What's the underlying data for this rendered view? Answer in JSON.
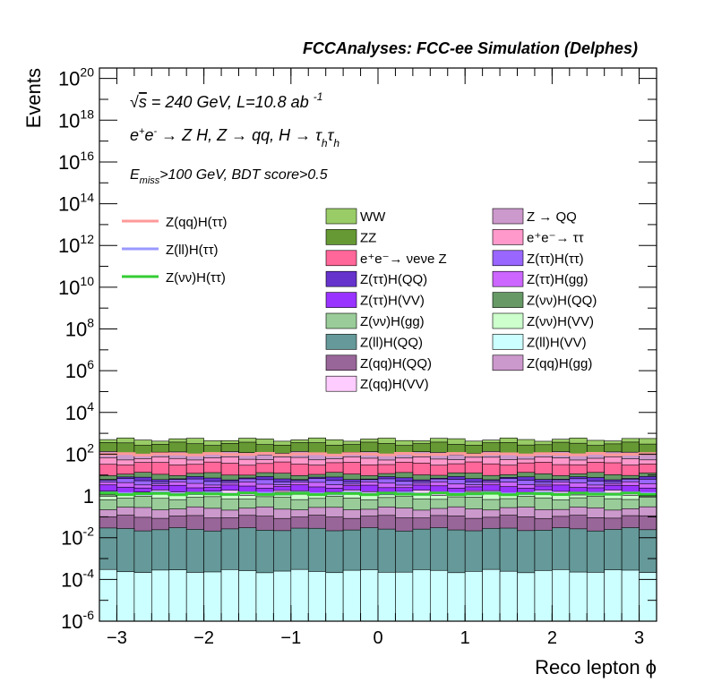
{
  "chart_data": {
    "type": "area",
    "title": "FCCAnalyses: FCC-ee Simulation (Delphes)",
    "annotations": [
      "√s = 240 GeV, L=10.8 ab⁻¹",
      "e⁺e⁻ → Z H, Z → qq, H → τhτh",
      "Emiss>100 GeV, BDT score>0.5"
    ],
    "xlabel": "Reco lepton ϕ",
    "ylabel": "Events",
    "xlim": [
      -3.2,
      3.2
    ],
    "ylim_log10": [
      -6,
      20.5
    ],
    "yscale": "log",
    "x_ticks": [
      "−3",
      "−2",
      "−1",
      "0",
      "1",
      "2",
      "3"
    ],
    "y_ticks": [
      "10^-6",
      "10^-4",
      "10^-2",
      "1",
      "10^2",
      "10^4",
      "10^6",
      "10^8",
      "10^10",
      "10^12",
      "10^14",
      "10^16",
      "10^18",
      "10^20"
    ],
    "n_bins": 32,
    "stack_levels_log10_bottom_to_top": [
      {
        "name": "Z(ll)H(VV)",
        "level": -3.6,
        "color": "#ccffff"
      },
      {
        "name": "Z(ll)H(QQ)",
        "level": -1.6,
        "color": "#669999"
      },
      {
        "name": "Z(qq)H(QQ)",
        "level": -1.0,
        "color": "#996699"
      },
      {
        "name": "Z(qq)H(gg)",
        "level": -0.6,
        "color": "#cc99cc"
      },
      {
        "name": "Z(νν)H(gg)",
        "level": -0.1,
        "color": "#99cc99"
      },
      {
        "name": "Z(νν)H(VV)",
        "level": 0.1,
        "color": "#ccffcc"
      },
      {
        "name": "Z(qq)H(VV)",
        "level": 0.2,
        "color": "#ffccff"
      },
      {
        "name": "Z(ττ)H(VV)",
        "level": 0.45,
        "color": "#9933ff"
      },
      {
        "name": "Z(ττ)H(gg)",
        "level": 0.6,
        "color": "#cc66ff"
      },
      {
        "name": "Z(ττ)H(ττ)",
        "level": 0.75,
        "color": "#9966ff"
      },
      {
        "name": "Z(ττ)H(QQ)",
        "level": 0.85,
        "color": "#6633cc"
      },
      {
        "name": "Z(νν)H(QQ)",
        "level": 1.05,
        "color": "#669966"
      },
      {
        "name": "e⁺e⁻→ νeνe Z",
        "level": 1.55,
        "color": "#ff6699"
      },
      {
        "name": "e⁺e⁻→ ττ",
        "level": 1.8,
        "color": "#ff99cc"
      },
      {
        "name": "Z → QQ",
        "level": 2.05,
        "color": "#cc99cc"
      },
      {
        "name": "ZZ",
        "level": 2.5,
        "color": "#669933"
      },
      {
        "name": "WW",
        "level": 2.7,
        "color": "#99cc66"
      }
    ],
    "signal_lines_log10": [
      {
        "name": "Z(qq)H(ττ)",
        "level": 2.0,
        "color": "#ff9999"
      },
      {
        "name": "Z(ll)H(ττ)",
        "level": 0.12,
        "color": "#9999ff"
      },
      {
        "name": "Z(νν)H(ττ)",
        "level": 0.1,
        "color": "#33cc33"
      }
    ],
    "legend_left": [
      "Z(qq)H(ττ)",
      "Z(ll)H(ττ)",
      "Z(νν)H(ττ)"
    ],
    "legend_col2": [
      "WW",
      "ZZ",
      "e⁺e⁻→ νeνe Z",
      "Z(ττ)H(QQ)",
      "Z(ττ)H(VV)",
      "Z(νν)H(gg)",
      "Z(ll)H(QQ)",
      "Z(qq)H(QQ)",
      "Z(qq)H(VV)"
    ],
    "legend_col3": [
      "Z → QQ",
      "e⁺e⁻→ ττ",
      "Z(ττ)H(ττ)",
      "Z(ττ)H(gg)",
      "Z(νν)H(QQ)",
      "Z(νν)H(VV)",
      "Z(ll)H(VV)",
      "Z(qq)H(gg)"
    ]
  }
}
